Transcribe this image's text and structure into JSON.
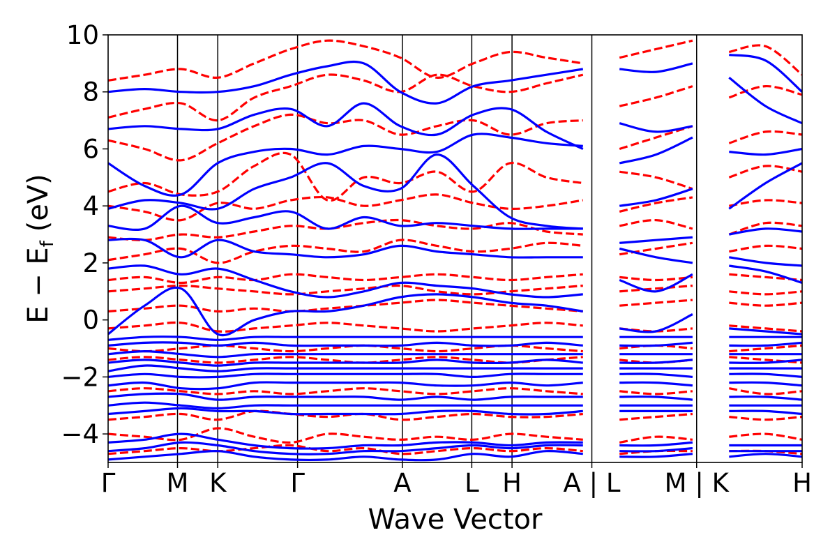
{
  "chart_data": {
    "type": "line",
    "xlabel": "Wave Vector",
    "ylabel": "E − E",
    "ylabel_subscript": "f",
    "ylabel_unit": "(eV)",
    "ylim": [
      -5,
      10
    ],
    "yticks": [
      -4,
      -2,
      0,
      2,
      4,
      6,
      8,
      10
    ],
    "ytick_labels": [
      "−4",
      "−2",
      "0",
      "2",
      "4",
      "6",
      "8",
      "10"
    ],
    "xlim": [
      0,
      10
    ],
    "kpoints": [
      {
        "pos": 0.0,
        "label": "Γ"
      },
      {
        "pos": 1.0,
        "label": "M"
      },
      {
        "pos": 1.58,
        "label": "K"
      },
      {
        "pos": 2.73,
        "label": "Γ"
      },
      {
        "pos": 4.24,
        "label": "A"
      },
      {
        "pos": 5.24,
        "label": "L"
      },
      {
        "pos": 5.82,
        "label": "H"
      },
      {
        "pos": 6.97,
        "label": "A | L"
      },
      {
        "pos": 8.48,
        "label": "M | K"
      },
      {
        "pos": 10.0,
        "label": "H"
      }
    ],
    "segments": [
      {
        "start": 0.0,
        "end": 6.97
      },
      {
        "start": 6.97,
        "end": 8.48
      },
      {
        "start": 8.48,
        "end": 10.0
      }
    ],
    "series": [
      {
        "color": "#0000ff",
        "style": "solid",
        "bands": [
          [
            -4.9,
            -4.8,
            -4.7,
            -4.6,
            -4.8,
            -4.9,
            -4.9,
            -4.8,
            -4.9,
            -4.9,
            -4.7,
            -4.8,
            -4.6,
            -4.7,
            -4.8,
            -4.8,
            -4.7,
            -4.8,
            -4.7,
            -4.8
          ],
          [
            -4.6,
            -4.5,
            -4.3,
            -4.4,
            -4.6,
            -4.7,
            -4.7,
            -4.6,
            -4.6,
            -4.5,
            -4.4,
            -4.5,
            -4.4,
            -4.4,
            -4.6,
            -4.6,
            -4.5,
            -4.6,
            -4.6,
            -4.6
          ],
          [
            -4.3,
            -4.2,
            -4.0,
            -4.2,
            -4.4,
            -4.5,
            -4.5,
            -4.4,
            -4.4,
            -4.3,
            -4.3,
            -4.4,
            -4.3,
            -4.3,
            -4.4,
            -4.4,
            -4.3,
            -4.4,
            -4.4,
            -4.4
          ],
          [
            -3.3,
            -3.2,
            -3.1,
            -3.2,
            -3.2,
            -3.3,
            -3.3,
            -3.3,
            -3.3,
            -3.2,
            -3.2,
            -3.3,
            -3.3,
            -3.2,
            -3.2,
            -3.2,
            -3.2,
            -3.2,
            -3.2,
            -3.3
          ],
          [
            -3.0,
            -2.9,
            -3.0,
            -3.1,
            -3.0,
            -3.0,
            -3.0,
            -3.0,
            -3.0,
            -3.0,
            -3.0,
            -3.0,
            -3.0,
            -3.0,
            -3.0,
            -3.0,
            -3.0,
            -3.0,
            -3.0,
            -3.0
          ],
          [
            -2.7,
            -2.6,
            -2.6,
            -2.8,
            -2.7,
            -2.7,
            -2.7,
            -2.7,
            -2.8,
            -2.7,
            -2.8,
            -2.7,
            -2.7,
            -2.7,
            -2.7,
            -2.7,
            -2.8,
            -2.7,
            -2.7,
            -2.8
          ],
          [
            -2.3,
            -2.2,
            -2.4,
            -2.4,
            -2.2,
            -2.2,
            -2.2,
            -2.2,
            -2.2,
            -2.3,
            -2.3,
            -2.2,
            -2.3,
            -2.2,
            -2.2,
            -2.2,
            -2.3,
            -2.2,
            -2.2,
            -2.3
          ],
          [
            -2.0,
            -1.9,
            -2.0,
            -2.0,
            -1.9,
            -1.9,
            -1.9,
            -1.9,
            -1.9,
            -1.9,
            -2.0,
            -1.9,
            -1.9,
            -1.9,
            -1.9,
            -1.9,
            -2.0,
            -1.9,
            -1.9,
            -2.0
          ],
          [
            -1.8,
            -1.6,
            -1.7,
            -1.8,
            -1.7,
            -1.7,
            -1.7,
            -1.7,
            -1.7,
            -1.7,
            -1.7,
            -1.7,
            -1.7,
            -1.7,
            -1.7,
            -1.7,
            -1.7,
            -1.7,
            -1.7,
            -1.7
          ],
          [
            -1.5,
            -1.4,
            -1.5,
            -1.6,
            -1.5,
            -1.5,
            -1.5,
            -1.5,
            -1.5,
            -1.4,
            -1.5,
            -1.5,
            -1.4,
            -1.5,
            -1.5,
            -1.5,
            -1.4,
            -1.5,
            -1.5,
            -1.4
          ],
          [
            -1.2,
            -1.1,
            -1.2,
            -1.3,
            -1.2,
            -1.2,
            -1.2,
            -1.2,
            -1.2,
            -1.2,
            -1.2,
            -1.2,
            -1.2,
            -1.2,
            -1.2,
            -1.2,
            -1.2,
            -1.2,
            -1.2,
            -1.2
          ],
          [
            -0.9,
            -0.8,
            -0.8,
            -0.9,
            -0.8,
            -0.9,
            -0.9,
            -0.9,
            -0.9,
            -0.8,
            -0.9,
            -0.9,
            -0.8,
            -0.9,
            -0.9,
            -0.9,
            -0.8,
            -0.9,
            -0.9,
            -0.8
          ],
          [
            -0.7,
            -0.6,
            -0.6,
            -0.7,
            -0.6,
            -0.6,
            -0.6,
            -0.6,
            -0.6,
            -0.6,
            -0.6,
            -0.6,
            -0.6,
            -0.6,
            -0.6,
            -0.6,
            -0.6,
            -0.6,
            -0.6,
            -0.6
          ],
          [
            -0.5,
            0.5,
            1.1,
            -0.5,
            0.0,
            0.3,
            0.3,
            0.5,
            0.8,
            0.9,
            0.8,
            0.6,
            0.5,
            0.3,
            -0.3,
            -0.4,
            0.2,
            -0.3,
            -0.4,
            -0.5
          ],
          [
            1.8,
            1.9,
            1.6,
            1.8,
            1.4,
            1.0,
            0.8,
            1.0,
            1.3,
            1.2,
            1.1,
            0.9,
            0.8,
            0.9,
            1.4,
            1.0,
            1.6,
            1.9,
            1.7,
            1.3
          ],
          [
            2.8,
            2.8,
            2.2,
            2.8,
            2.4,
            2.3,
            2.2,
            2.3,
            2.6,
            2.4,
            2.3,
            2.2,
            2.2,
            2.2,
            2.5,
            2.2,
            2.0,
            2.2,
            2.0,
            1.9
          ],
          [
            3.3,
            3.2,
            4.0,
            3.4,
            3.6,
            3.8,
            3.2,
            3.6,
            3.3,
            3.4,
            3.3,
            3.2,
            3.2,
            3.2,
            2.7,
            2.8,
            2.9,
            3.0,
            3.2,
            3.1
          ],
          [
            3.9,
            4.2,
            4.1,
            3.9,
            4.6,
            5.0,
            5.5,
            4.7,
            4.6,
            5.8,
            4.7,
            3.6,
            3.3,
            3.2,
            4.0,
            4.2,
            4.6,
            3.9,
            4.8,
            5.5
          ],
          [
            5.5,
            4.7,
            4.4,
            5.5,
            5.9,
            6.0,
            5.8,
            6.1,
            6.0,
            5.9,
            6.5,
            6.4,
            6.2,
            6.1,
            5.5,
            5.8,
            6.4,
            5.9,
            5.8,
            6.0
          ],
          [
            6.7,
            6.8,
            6.7,
            6.7,
            7.2,
            7.4,
            6.8,
            7.6,
            6.8,
            6.5,
            7.2,
            7.4,
            6.6,
            6.0,
            6.9,
            6.6,
            6.8,
            8.5,
            7.5,
            6.9
          ],
          [
            8.0,
            8.1,
            8.0,
            8.0,
            8.2,
            8.6,
            8.9,
            9.0,
            8.0,
            7.6,
            8.2,
            8.4,
            8.6,
            8.8,
            8.8,
            8.7,
            9.0,
            9.3,
            9.1,
            8.0
          ]
        ]
      },
      {
        "color": "#ff0000",
        "style": "dashed",
        "bands": [
          [
            -4.7,
            -4.6,
            -4.5,
            -4.6,
            -4.5,
            -4.4,
            -4.6,
            -4.5,
            -4.7,
            -4.6,
            -4.5,
            -4.6,
            -4.5,
            -4.6,
            -4.7,
            -4.6,
            -4.6,
            -4.6,
            -4.6,
            -4.7
          ],
          [
            -4.0,
            -4.1,
            -4.2,
            -3.8,
            -4.1,
            -4.3,
            -4.0,
            -4.1,
            -4.2,
            -4.1,
            -4.2,
            -4.0,
            -4.1,
            -4.2,
            -4.3,
            -4.1,
            -4.2,
            -4.1,
            -4.0,
            -4.2
          ],
          [
            -3.5,
            -3.4,
            -3.3,
            -3.5,
            -3.2,
            -3.3,
            -3.4,
            -3.3,
            -3.5,
            -3.4,
            -3.3,
            -3.4,
            -3.4,
            -3.3,
            -3.5,
            -3.4,
            -3.3,
            -3.4,
            -3.5,
            -3.4
          ],
          [
            -2.5,
            -2.4,
            -2.5,
            -2.6,
            -2.5,
            -2.6,
            -2.5,
            -2.4,
            -2.5,
            -2.6,
            -2.5,
            -2.4,
            -2.5,
            -2.6,
            -2.5,
            -2.6,
            -2.5,
            -2.4,
            -2.6,
            -2.5
          ],
          [
            -1.4,
            -1.3,
            -1.4,
            -1.5,
            -1.4,
            -1.3,
            -1.4,
            -1.5,
            -1.4,
            -1.3,
            -1.4,
            -1.5,
            -1.4,
            -1.3,
            -1.4,
            -1.5,
            -1.4,
            -1.3,
            -1.4,
            -1.5
          ],
          [
            -1.0,
            -1.1,
            -1.0,
            -0.9,
            -1.0,
            -1.1,
            -1.0,
            -0.9,
            -1.0,
            -1.1,
            -1.0,
            -0.9,
            -1.0,
            -1.1,
            -1.0,
            -0.9,
            -1.0,
            -1.1,
            -1.0,
            -0.9
          ],
          [
            -0.3,
            -0.2,
            -0.1,
            -0.4,
            -0.3,
            -0.2,
            -0.1,
            -0.2,
            -0.3,
            -0.4,
            -0.3,
            -0.2,
            -0.1,
            -0.2,
            -0.3,
            -0.4,
            -0.3,
            -0.2,
            -0.3,
            -0.4
          ],
          [
            0.3,
            0.4,
            0.5,
            0.3,
            0.4,
            0.3,
            0.4,
            0.5,
            0.6,
            0.7,
            0.6,
            0.5,
            0.4,
            0.3,
            0.5,
            0.6,
            0.7,
            0.6,
            0.5,
            0.6
          ],
          [
            1.0,
            1.1,
            1.2,
            1.1,
            1.0,
            0.9,
            1.0,
            1.1,
            1.2,
            1.0,
            0.9,
            1.0,
            1.1,
            1.2,
            1.0,
            1.1,
            1.2,
            1.0,
            0.9,
            1.0
          ],
          [
            1.4,
            1.5,
            1.3,
            1.5,
            1.4,
            1.6,
            1.5,
            1.4,
            1.5,
            1.6,
            1.5,
            1.4,
            1.5,
            1.6,
            1.5,
            1.4,
            1.5,
            1.6,
            1.5,
            1.4
          ],
          [
            2.1,
            2.3,
            2.5,
            2.0,
            2.4,
            2.6,
            2.5,
            2.4,
            2.8,
            2.6,
            2.4,
            2.5,
            2.7,
            2.6,
            2.3,
            2.5,
            2.7,
            2.4,
            2.6,
            2.5
          ],
          [
            2.9,
            2.8,
            3.0,
            2.9,
            3.1,
            3.3,
            3.2,
            3.4,
            3.5,
            3.3,
            3.2,
            3.4,
            3.1,
            3.0,
            3.3,
            3.5,
            3.2,
            3.0,
            3.4,
            3.3
          ],
          [
            4.0,
            3.8,
            3.5,
            4.1,
            3.9,
            4.2,
            4.3,
            4.0,
            4.2,
            4.4,
            4.1,
            3.9,
            4.0,
            4.2,
            3.8,
            4.1,
            4.3,
            4.0,
            4.2,
            4.1
          ],
          [
            4.5,
            4.8,
            4.4,
            4.5,
            5.4,
            5.8,
            4.2,
            5.0,
            4.8,
            5.2,
            4.5,
            5.5,
            5.0,
            4.8,
            5.2,
            5.0,
            4.6,
            5.0,
            5.4,
            5.2
          ],
          [
            6.3,
            6.0,
            5.6,
            6.2,
            6.8,
            7.2,
            6.9,
            7.0,
            6.5,
            6.8,
            7.0,
            6.5,
            6.9,
            7.0,
            6.0,
            6.4,
            6.8,
            6.2,
            6.6,
            6.5
          ],
          [
            7.1,
            7.4,
            7.6,
            7.0,
            7.8,
            8.2,
            8.6,
            8.4,
            8.0,
            8.6,
            8.2,
            8.0,
            8.3,
            8.6,
            7.5,
            7.8,
            8.2,
            7.8,
            8.2,
            7.9
          ],
          [
            8.4,
            8.6,
            8.8,
            8.5,
            9.0,
            9.5,
            9.8,
            9.6,
            9.2,
            8.5,
            9.0,
            9.4,
            9.2,
            9.0,
            9.2,
            9.5,
            9.8,
            9.4,
            9.6,
            8.6
          ]
        ]
      }
    ]
  }
}
